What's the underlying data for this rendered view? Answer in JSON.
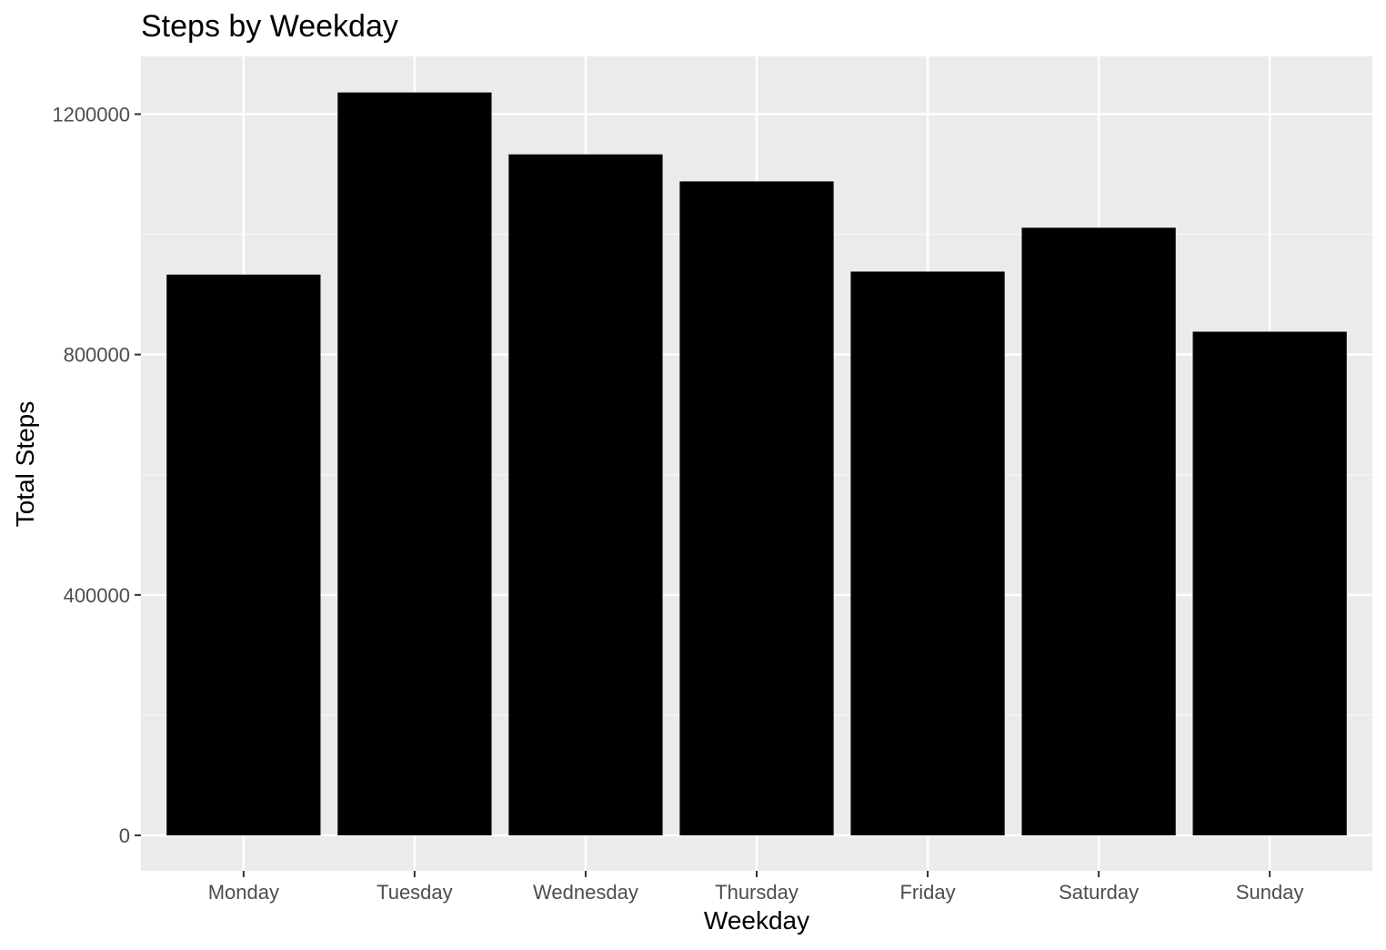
{
  "chart_data": {
    "type": "bar",
    "title": "Steps by Weekday",
    "xlabel": "Weekday",
    "ylabel": "Total Steps",
    "categories": [
      "Monday",
      "Tuesday",
      "Wednesday",
      "Thursday",
      "Friday",
      "Saturday",
      "Sunday"
    ],
    "values": [
      933000,
      1236000,
      1133000,
      1088000,
      938000,
      1011000,
      838000
    ],
    "ylim": [
      -59000,
      1296000
    ],
    "y_ticks": [
      0,
      400000,
      800000,
      1200000
    ],
    "y_tick_labels": [
      "0",
      "400000",
      "800000",
      "1200000"
    ],
    "grid": true,
    "legend": "none"
  },
  "colors": {
    "panel_background": "#ebebeb",
    "grid_major": "#ffffff",
    "grid_minor": "#f5f5f5",
    "bar_fill": "#000000",
    "tick_text": "#4d4d4d",
    "tick_line": "#333333",
    "text": "#000000"
  }
}
